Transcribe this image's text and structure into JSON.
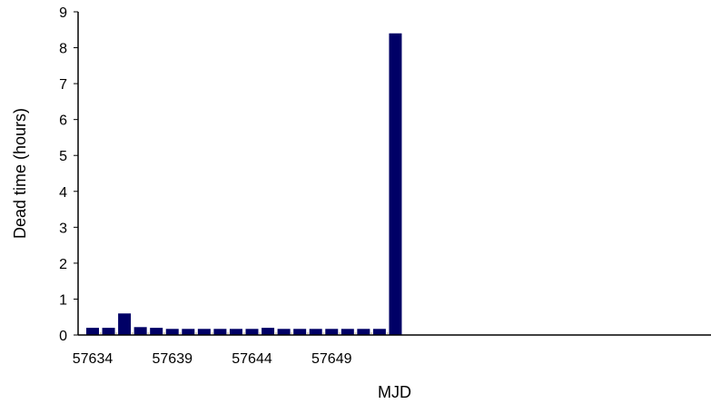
{
  "chart_data": {
    "type": "bar",
    "xlabel": "MJD",
    "ylabel": "Dead time (hours)",
    "x": [
      57634,
      57635,
      57636,
      57637,
      57638,
      57639,
      57640,
      57641,
      57642,
      57643,
      57644,
      57645,
      57646,
      57647,
      57648,
      57649,
      57650,
      57651,
      57652,
      57653
    ],
    "values": [
      0.2,
      0.2,
      0.6,
      0.22,
      0.2,
      0.17,
      0.17,
      0.17,
      0.17,
      0.17,
      0.17,
      0.2,
      0.17,
      0.17,
      0.17,
      0.17,
      0.17,
      0.17,
      0.17,
      8.4
    ],
    "x_tick_labels": [
      "57634",
      "57639",
      "57644",
      "57649"
    ],
    "y_tick_labels": [
      "0",
      "1",
      "2",
      "3",
      "4",
      "5",
      "6",
      "7",
      "8",
      "9"
    ],
    "ylim": [
      0,
      9
    ],
    "grid": false,
    "colors": {
      "bar": "#000066",
      "axis": "#000000",
      "baseline": "#c8b89a"
    }
  }
}
